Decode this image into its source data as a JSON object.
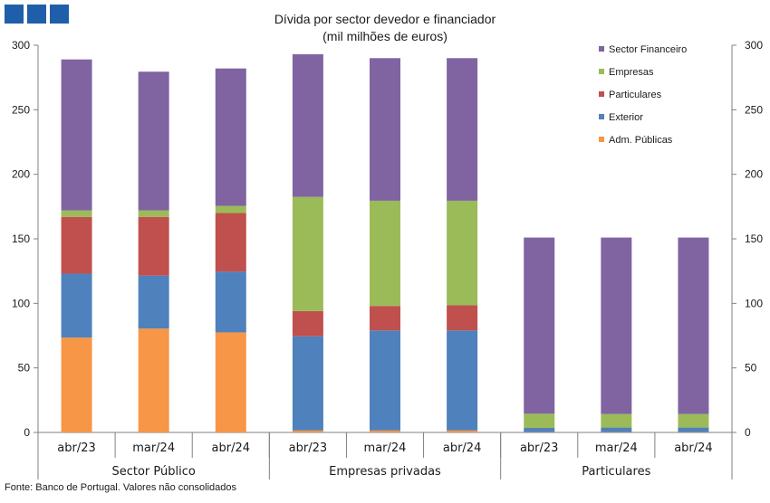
{
  "logo": {
    "blocks": 3,
    "color": "#1f5fa9"
  },
  "source_note": "Fonte: Banco de Portugal. Valores não consolidados",
  "chart_data": {
    "type": "bar",
    "stacked": true,
    "title": "Dívida por sector devedor e financiador",
    "subtitle": "(mil milhões de euros)",
    "ylim": [
      0,
      300
    ],
    "yticks": [
      "0",
      "50",
      "100",
      "150",
      "200",
      "250",
      "300"
    ],
    "secondary_yticks": [
      "0",
      "50",
      "100",
      "150",
      "200",
      "250",
      "300"
    ],
    "legend_position": "top-right",
    "groups": [
      {
        "label": "Sector Público",
        "categories": [
          "abr/23",
          "mar/24",
          "abr/24"
        ]
      },
      {
        "label": "Empresas privadas",
        "categories": [
          "abr/23",
          "mar/24",
          "abr/24"
        ]
      },
      {
        "label": "Particulares",
        "categories": [
          "abr/23",
          "mar/24",
          "abr/24"
        ]
      }
    ],
    "series": [
      {
        "name": "Adm. Públicas",
        "color": "#f79646",
        "values": [
          73.5,
          80.5,
          77.5,
          1.5,
          1.5,
          1.5,
          0.3,
          0.3,
          0.3
        ]
      },
      {
        "name": "Exterior",
        "color": "#4f81bd",
        "values": [
          49.5,
          41.0,
          47.0,
          73.0,
          77.5,
          77.5,
          3.2,
          3.5,
          3.5
        ]
      },
      {
        "name": "Particulares",
        "color": "#c0504d",
        "values": [
          44.0,
          45.5,
          45.5,
          19.5,
          19.0,
          19.5,
          0.0,
          0.0,
          0.0
        ]
      },
      {
        "name": "Empresas",
        "color": "#9bbb59",
        "values": [
          5.0,
          5.0,
          5.5,
          88.5,
          81.5,
          81.0,
          11.0,
          10.5,
          10.5
        ]
      },
      {
        "name": "Sector Financeiro",
        "color": "#8064a2",
        "values": [
          117.0,
          107.5,
          106.5,
          110.5,
          110.5,
          110.5,
          136.5,
          136.7,
          136.7
        ]
      }
    ],
    "legend_order": [
      "Sector Financeiro",
      "Empresas",
      "Particulares",
      "Exterior",
      "Adm. Públicas"
    ]
  }
}
